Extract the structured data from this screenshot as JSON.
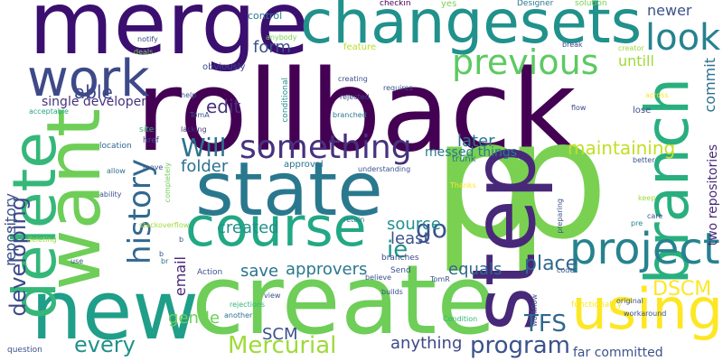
{
  "words": [
    {
      "text": "rollback",
      "color": "#440154"
    },
    {
      "text": "p",
      "color": "#7ad151"
    },
    {
      "text": "p",
      "color": "#7ad151"
    },
    {
      "text": "merge",
      "color": "#3b0f70"
    },
    {
      "text": "create",
      "color": "#6ece58"
    },
    {
      "text": "state",
      "color": "#2a788e"
    },
    {
      "text": "changesets",
      "color": "#21918c"
    },
    {
      "text": "new",
      "color": "#1f9e89"
    },
    {
      "text": "want",
      "color": "#6ece58"
    },
    {
      "text": "step",
      "color": "#482878"
    },
    {
      "text": "course",
      "color": "#22a884"
    },
    {
      "text": "delete",
      "color": "#35b779"
    },
    {
      "text": "work",
      "color": "#3e4989"
    },
    {
      "text": "branch",
      "color": "#29af7f"
    },
    {
      "text": "using",
      "color": "#fde725"
    },
    {
      "text": "project",
      "color": "#26828e"
    },
    {
      "text": "something",
      "color": "#46327e"
    },
    {
      "text": "history",
      "color": "#31688e"
    },
    {
      "text": "look",
      "color": "#26828e"
    },
    {
      "text": "previous",
      "color": "#5ec962"
    },
    {
      "text": "Will",
      "color": "#2c728e"
    },
    {
      "text": "developing",
      "color": "#3e4989"
    },
    {
      "text": "Mercurial",
      "color": "#9fda3a"
    },
    {
      "text": "program",
      "color": "#3b528b"
    },
    {
      "text": "go",
      "color": "#3b528b"
    },
    {
      "text": "ie",
      "color": "#21918c"
    },
    {
      "text": "TFS",
      "color": "#31688e"
    },
    {
      "text": "every",
      "color": "#21918c"
    },
    {
      "text": "DSCM",
      "color": "#fde725"
    },
    {
      "text": "place",
      "color": "#31688e"
    },
    {
      "text": "able",
      "color": "#3e4989"
    },
    {
      "text": "edit",
      "color": "#46327e"
    },
    {
      "text": "form",
      "color": "#3b528b"
    },
    {
      "text": "newer",
      "color": "#3b528b"
    },
    {
      "text": "untill",
      "color": "#9fda3a"
    },
    {
      "text": "commit",
      "color": "#2c728e"
    },
    {
      "text": "maintaining",
      "color": "#c2df23"
    },
    {
      "text": "later",
      "color": "#2a788e"
    },
    {
      "text": "folder",
      "color": "#2c728e"
    },
    {
      "text": "created",
      "color": "#21918c"
    },
    {
      "text": "source",
      "color": "#21918c"
    },
    {
      "text": "least",
      "color": "#3b528b"
    },
    {
      "text": "save",
      "color": "#2c728e"
    },
    {
      "text": "approvers",
      "color": "#2a788e"
    },
    {
      "text": "equals",
      "color": "#31688e"
    },
    {
      "text": "email",
      "color": "#482878"
    },
    {
      "text": "gentle",
      "color": "#6ece58"
    },
    {
      "text": "SCM",
      "color": "#3b528b"
    },
    {
      "text": "anything",
      "color": "#3e4989"
    },
    {
      "text": "repository",
      "color": "#3b528b"
    },
    {
      "text": "single developer",
      "color": "#46327e"
    },
    {
      "text": "messed things",
      "color": "#2a788e"
    },
    {
      "text": "two repositories",
      "color": "#482878"
    },
    {
      "text": "far committed",
      "color": "#3b528b"
    },
    {
      "text": "control",
      "color": "#2a788e"
    },
    {
      "text": "checkin",
      "color": "#440154"
    },
    {
      "text": "Designer",
      "color": "#2a788e"
    },
    {
      "text": "solution",
      "color": "#7ad151"
    },
    {
      "text": "yes",
      "color": "#7ad151"
    },
    {
      "text": "anybody",
      "color": "#7ad151"
    },
    {
      "text": "notify",
      "color": "#3e4989"
    },
    {
      "text": "deals",
      "color": "#7ad151"
    },
    {
      "text": "feature",
      "color": "#b5de2b"
    },
    {
      "text": "break",
      "color": "#3e4989"
    },
    {
      "text": "creator",
      "color": "#9fda3a"
    },
    {
      "text": "obviously",
      "color": "#3e4989"
    },
    {
      "text": "conditional",
      "color": "#21918c"
    },
    {
      "text": "creating",
      "color": "#3b528b"
    },
    {
      "text": "requires",
      "color": "#3b528b"
    },
    {
      "text": "rejected",
      "color": "#3e4989"
    },
    {
      "text": "branched",
      "color": "#2a788e"
    },
    {
      "text": "help",
      "color": "#3b528b"
    },
    {
      "text": "acceptable",
      "color": "#22a884"
    },
    {
      "text": "TomA",
      "color": "#3b528b"
    },
    {
      "text": "lacking",
      "color": "#46327e"
    },
    {
      "text": "flow",
      "color": "#3e4989"
    },
    {
      "text": "across",
      "color": "#fde725"
    },
    {
      "text": "lose",
      "color": "#3b528b"
    },
    {
      "text": "site",
      "color": "#35b779"
    },
    {
      "text": "href",
      "color": "#3b528b"
    },
    {
      "text": "location",
      "color": "#31688e"
    },
    {
      "text": "approval",
      "color": "#2c728e"
    },
    {
      "text": "understanding",
      "color": "#3b528b"
    },
    {
      "text": "trunk",
      "color": "#2c728e"
    },
    {
      "text": "better",
      "color": "#3b528b"
    },
    {
      "text": "allow",
      "color": "#2c728e"
    },
    {
      "text": "move",
      "color": "#3b528b"
    },
    {
      "text": "ability",
      "color": "#3b528b"
    },
    {
      "text": "completely",
      "color": "#6ece58"
    },
    {
      "text": "Thanks",
      "color": "#fde725"
    },
    {
      "text": "keep",
      "color": "#9fda3a"
    },
    {
      "text": "preparing",
      "color": "#3b528b"
    },
    {
      "text": "care",
      "color": "#3b528b"
    },
    {
      "text": "pre",
      "color": "#26828e"
    },
    {
      "text": "stackoverflow",
      "color": "#9fda3a"
    },
    {
      "text": "retain",
      "color": "#2a788e"
    },
    {
      "text": "branches",
      "color": "#3e4989"
    },
    {
      "text": "Send",
      "color": "#3b528b"
    },
    {
      "text": "believe",
      "color": "#3b528b"
    },
    {
      "text": "deleting",
      "color": "#9fda3a"
    },
    {
      "text": "use",
      "color": "#3b528b"
    },
    {
      "text": "br",
      "color": "#2c728e"
    },
    {
      "text": "Action",
      "color": "#3b528b"
    },
    {
      "text": "builds",
      "color": "#3b528b"
    },
    {
      "text": "TomR",
      "color": "#3b528b"
    },
    {
      "text": "code",
      "color": "#3b528b"
    },
    {
      "text": "workflow",
      "color": "#3b528b"
    },
    {
      "text": "functionality",
      "color": "#fde725"
    },
    {
      "text": "original",
      "color": "#3b528b"
    },
    {
      "text": "workaround",
      "color": "#3b528b"
    },
    {
      "text": "view",
      "color": "#3b528b"
    },
    {
      "text": "rejections",
      "color": "#35b779"
    },
    {
      "text": "another",
      "color": "#2c728e"
    },
    {
      "text": "Condition",
      "color": "#35b779"
    },
    {
      "text": "question",
      "color": "#3b528b"
    },
    {
      "text": "b",
      "color": "#3b528b"
    },
    {
      "text": "b",
      "color": "#3b528b"
    }
  ]
}
